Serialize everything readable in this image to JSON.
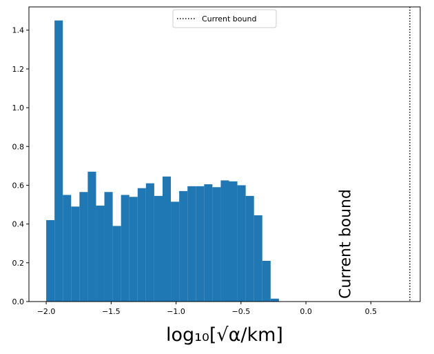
{
  "chart_data": {
    "type": "histogram",
    "xlabel": "log₁₀[√α/km]",
    "bins": [
      -2.0,
      -1.936,
      -1.872,
      -1.808,
      -1.744,
      -1.68,
      -1.616,
      -1.552,
      -1.488,
      -1.424,
      -1.36,
      -1.296,
      -1.232,
      -1.168,
      -1.104,
      -1.04,
      -0.976,
      -0.912,
      -0.848,
      -0.784,
      -0.72,
      -0.656,
      -0.592,
      -0.528,
      -0.464,
      -0.4,
      -0.336,
      -0.272,
      -0.208
    ],
    "values": [
      0.42,
      1.45,
      0.55,
      0.49,
      0.565,
      0.67,
      0.495,
      0.565,
      0.39,
      0.55,
      0.54,
      0.585,
      0.61,
      0.545,
      0.645,
      0.515,
      0.57,
      0.595,
      0.595,
      0.605,
      0.59,
      0.625,
      0.62,
      0.6,
      0.545,
      0.445,
      0.21,
      0.015
    ],
    "color": "#1f77b4",
    "vline": {
      "x": 0.8,
      "name": "Current bound",
      "color": "#000000"
    },
    "annotation": "Current bound",
    "legend": "upper center",
    "xlim": [
      -2.133,
      0.88
    ],
    "ylim": [
      0,
      1.52
    ],
    "xticks": [
      {
        "value": -2,
        "label": "−2.0"
      },
      {
        "value": -1.5,
        "label": "−1.5"
      },
      {
        "value": -1,
        "label": "−1.0"
      },
      {
        "value": -0.5,
        "label": "−0.5"
      },
      {
        "value": 0,
        "label": "0.0"
      },
      {
        "value": 0.5,
        "label": "0.5"
      }
    ],
    "yticks": [
      {
        "value": 0,
        "label": "0.0"
      },
      {
        "value": 0.2,
        "label": "0.2"
      },
      {
        "value": 0.4,
        "label": "0.4"
      },
      {
        "value": 0.6,
        "label": "0.6"
      },
      {
        "value": 0.8,
        "label": "0.8"
      },
      {
        "value": 1.0,
        "label": "1.0"
      },
      {
        "value": 1.2,
        "label": "1.2"
      },
      {
        "value": 1.4,
        "label": "1.4"
      }
    ]
  }
}
